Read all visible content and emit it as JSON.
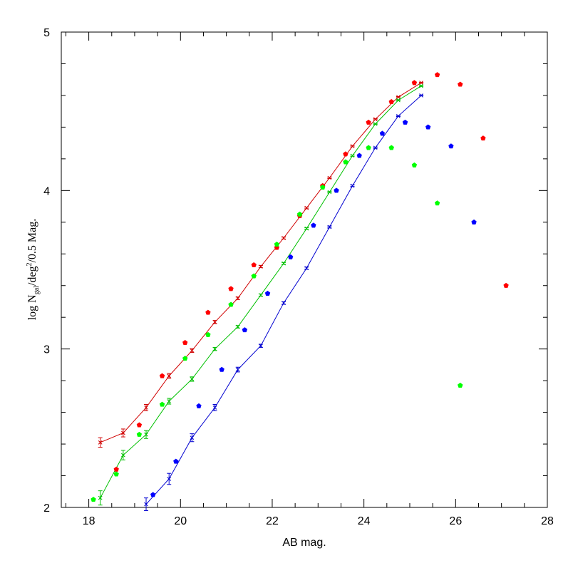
{
  "chart_data": {
    "type": "scatter",
    "xlabel": "AB mag.",
    "ylabel": {
      "pre": "log N",
      "sub": "gal",
      "mid": "/deg",
      "sup": "2",
      "post": "/0.5 Mag."
    },
    "xlim": [
      17.4,
      28
    ],
    "ylim": [
      2,
      5
    ],
    "xticks": [
      "18",
      "20",
      "22",
      "24",
      "26",
      "28"
    ],
    "yticks": [
      "2",
      "3",
      "4",
      "5"
    ],
    "grid": false,
    "colors": {
      "red": "#ff0000",
      "green": "#00ff00",
      "blue": "#0000ff",
      "red_line": "#d00000",
      "green_line": "#00c000",
      "blue_line": "#0000d0"
    },
    "line_series": [
      {
        "color": "red",
        "x": [
          18.25,
          18.75,
          19.25,
          19.75,
          20.25,
          20.75,
          21.25,
          21.75,
          22.25,
          22.75,
          23.25,
          23.75,
          24.25,
          24.75,
          25.25
        ],
        "y": [
          2.41,
          2.47,
          2.63,
          2.83,
          2.99,
          3.17,
          3.32,
          3.52,
          3.7,
          3.89,
          4.08,
          4.28,
          4.45,
          4.59,
          4.68
        ],
        "err": [
          0.03,
          0.025,
          0.02,
          0.015,
          0.012,
          0.01,
          0.008,
          0.007,
          0.006,
          0.005,
          0.004,
          0.004,
          0.003,
          0.003,
          0.003
        ]
      },
      {
        "color": "green",
        "x": [
          18.25,
          18.75,
          19.25,
          19.75,
          20.25,
          20.75,
          21.25,
          21.75,
          22.25,
          22.75,
          23.25,
          23.75,
          24.25,
          24.75,
          25.25
        ],
        "y": [
          2.06,
          2.33,
          2.46,
          2.67,
          2.81,
          3.0,
          3.14,
          3.34,
          3.54,
          3.76,
          3.99,
          4.22,
          4.42,
          4.57,
          4.66
        ],
        "err": [
          0.045,
          0.03,
          0.025,
          0.018,
          0.014,
          0.01,
          0.008,
          0.007,
          0.006,
          0.005,
          0.004,
          0.004,
          0.003,
          0.003,
          0.003
        ]
      },
      {
        "color": "blue",
        "x": [
          19.25,
          19.75,
          20.25,
          20.75,
          21.25,
          21.75,
          22.25,
          22.75,
          23.25,
          23.75,
          24.25,
          24.75,
          25.25
        ],
        "y": [
          2.02,
          2.18,
          2.44,
          2.63,
          2.87,
          3.02,
          3.29,
          3.51,
          3.77,
          4.03,
          4.27,
          4.47,
          4.6
        ],
        "err": [
          0.04,
          0.035,
          0.025,
          0.02,
          0.015,
          0.01,
          0.008,
          0.007,
          0.006,
          0.005,
          0.004,
          0.003,
          0.003
        ]
      }
    ],
    "point_series": [
      {
        "color": "red",
        "x": [
          18.6,
          19.1,
          19.6,
          20.1,
          20.6,
          21.1,
          21.6,
          22.1,
          22.6,
          23.1,
          23.6,
          24.1,
          24.6,
          25.1,
          25.6,
          26.1,
          26.6,
          27.1
        ],
        "y": [
          2.24,
          2.52,
          2.83,
          3.04,
          3.23,
          3.38,
          3.53,
          3.64,
          3.84,
          4.03,
          4.23,
          4.43,
          4.56,
          4.68,
          4.73,
          4.67,
          4.33,
          3.4
        ]
      },
      {
        "color": "green",
        "x": [
          18.1,
          18.6,
          19.1,
          19.6,
          20.1,
          20.6,
          21.1,
          21.6,
          22.1,
          22.6,
          23.1,
          23.6,
          24.1,
          24.6,
          25.1,
          25.6,
          26.1
        ],
        "y": [
          2.05,
          2.21,
          2.46,
          2.65,
          2.94,
          3.09,
          3.28,
          3.46,
          3.66,
          3.85,
          4.02,
          4.18,
          4.27,
          4.27,
          4.16,
          3.92,
          2.77
        ]
      },
      {
        "color": "blue",
        "x": [
          19.4,
          19.9,
          20.4,
          20.9,
          21.4,
          21.9,
          22.4,
          22.9,
          23.4,
          23.9,
          24.4,
          24.9,
          25.4,
          25.9,
          26.4
        ],
        "y": [
          2.08,
          2.29,
          2.64,
          2.87,
          3.12,
          3.35,
          3.58,
          3.78,
          4.0,
          4.22,
          4.36,
          4.43,
          4.4,
          4.28,
          3.8
        ]
      }
    ]
  }
}
